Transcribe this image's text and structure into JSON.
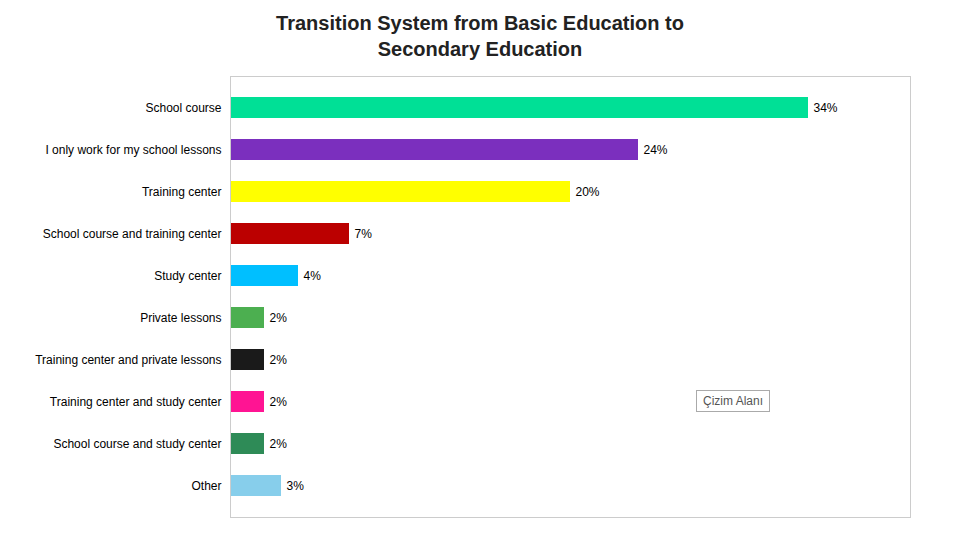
{
  "chart_data": {
    "type": "bar",
    "title": "Transition System from Basic Education to",
    "subtitle": "Secondary Education",
    "orientation": "horizontal",
    "categories": [
      "School course",
      "I only work for my school lessons",
      "Training center",
      "School course and training center",
      "Study center",
      "Private lessons",
      "Training center and private lessons",
      "Training center and study center",
      "School course and study center",
      "Other"
    ],
    "values": [
      34,
      24,
      20,
      7,
      4,
      2,
      2,
      2,
      2,
      3
    ],
    "value_labels": [
      "34%",
      "24%",
      "20%",
      "7%",
      "4%",
      "2%",
      "2%",
      "2%",
      "2%",
      "3%"
    ],
    "colors": [
      "#00E096",
      "#7B2FBE",
      "#FFFF00",
      "#BB0000",
      "#00BFFF",
      "#4CAF50",
      "#1A1A1A",
      "#FF1493",
      "#2E8B57",
      "#87CEEB"
    ],
    "xlim": [
      0,
      40
    ],
    "data_labels": true,
    "tick_labels": "y",
    "grid": false,
    "annotations": [
      "Çizim Alanı"
    ]
  }
}
